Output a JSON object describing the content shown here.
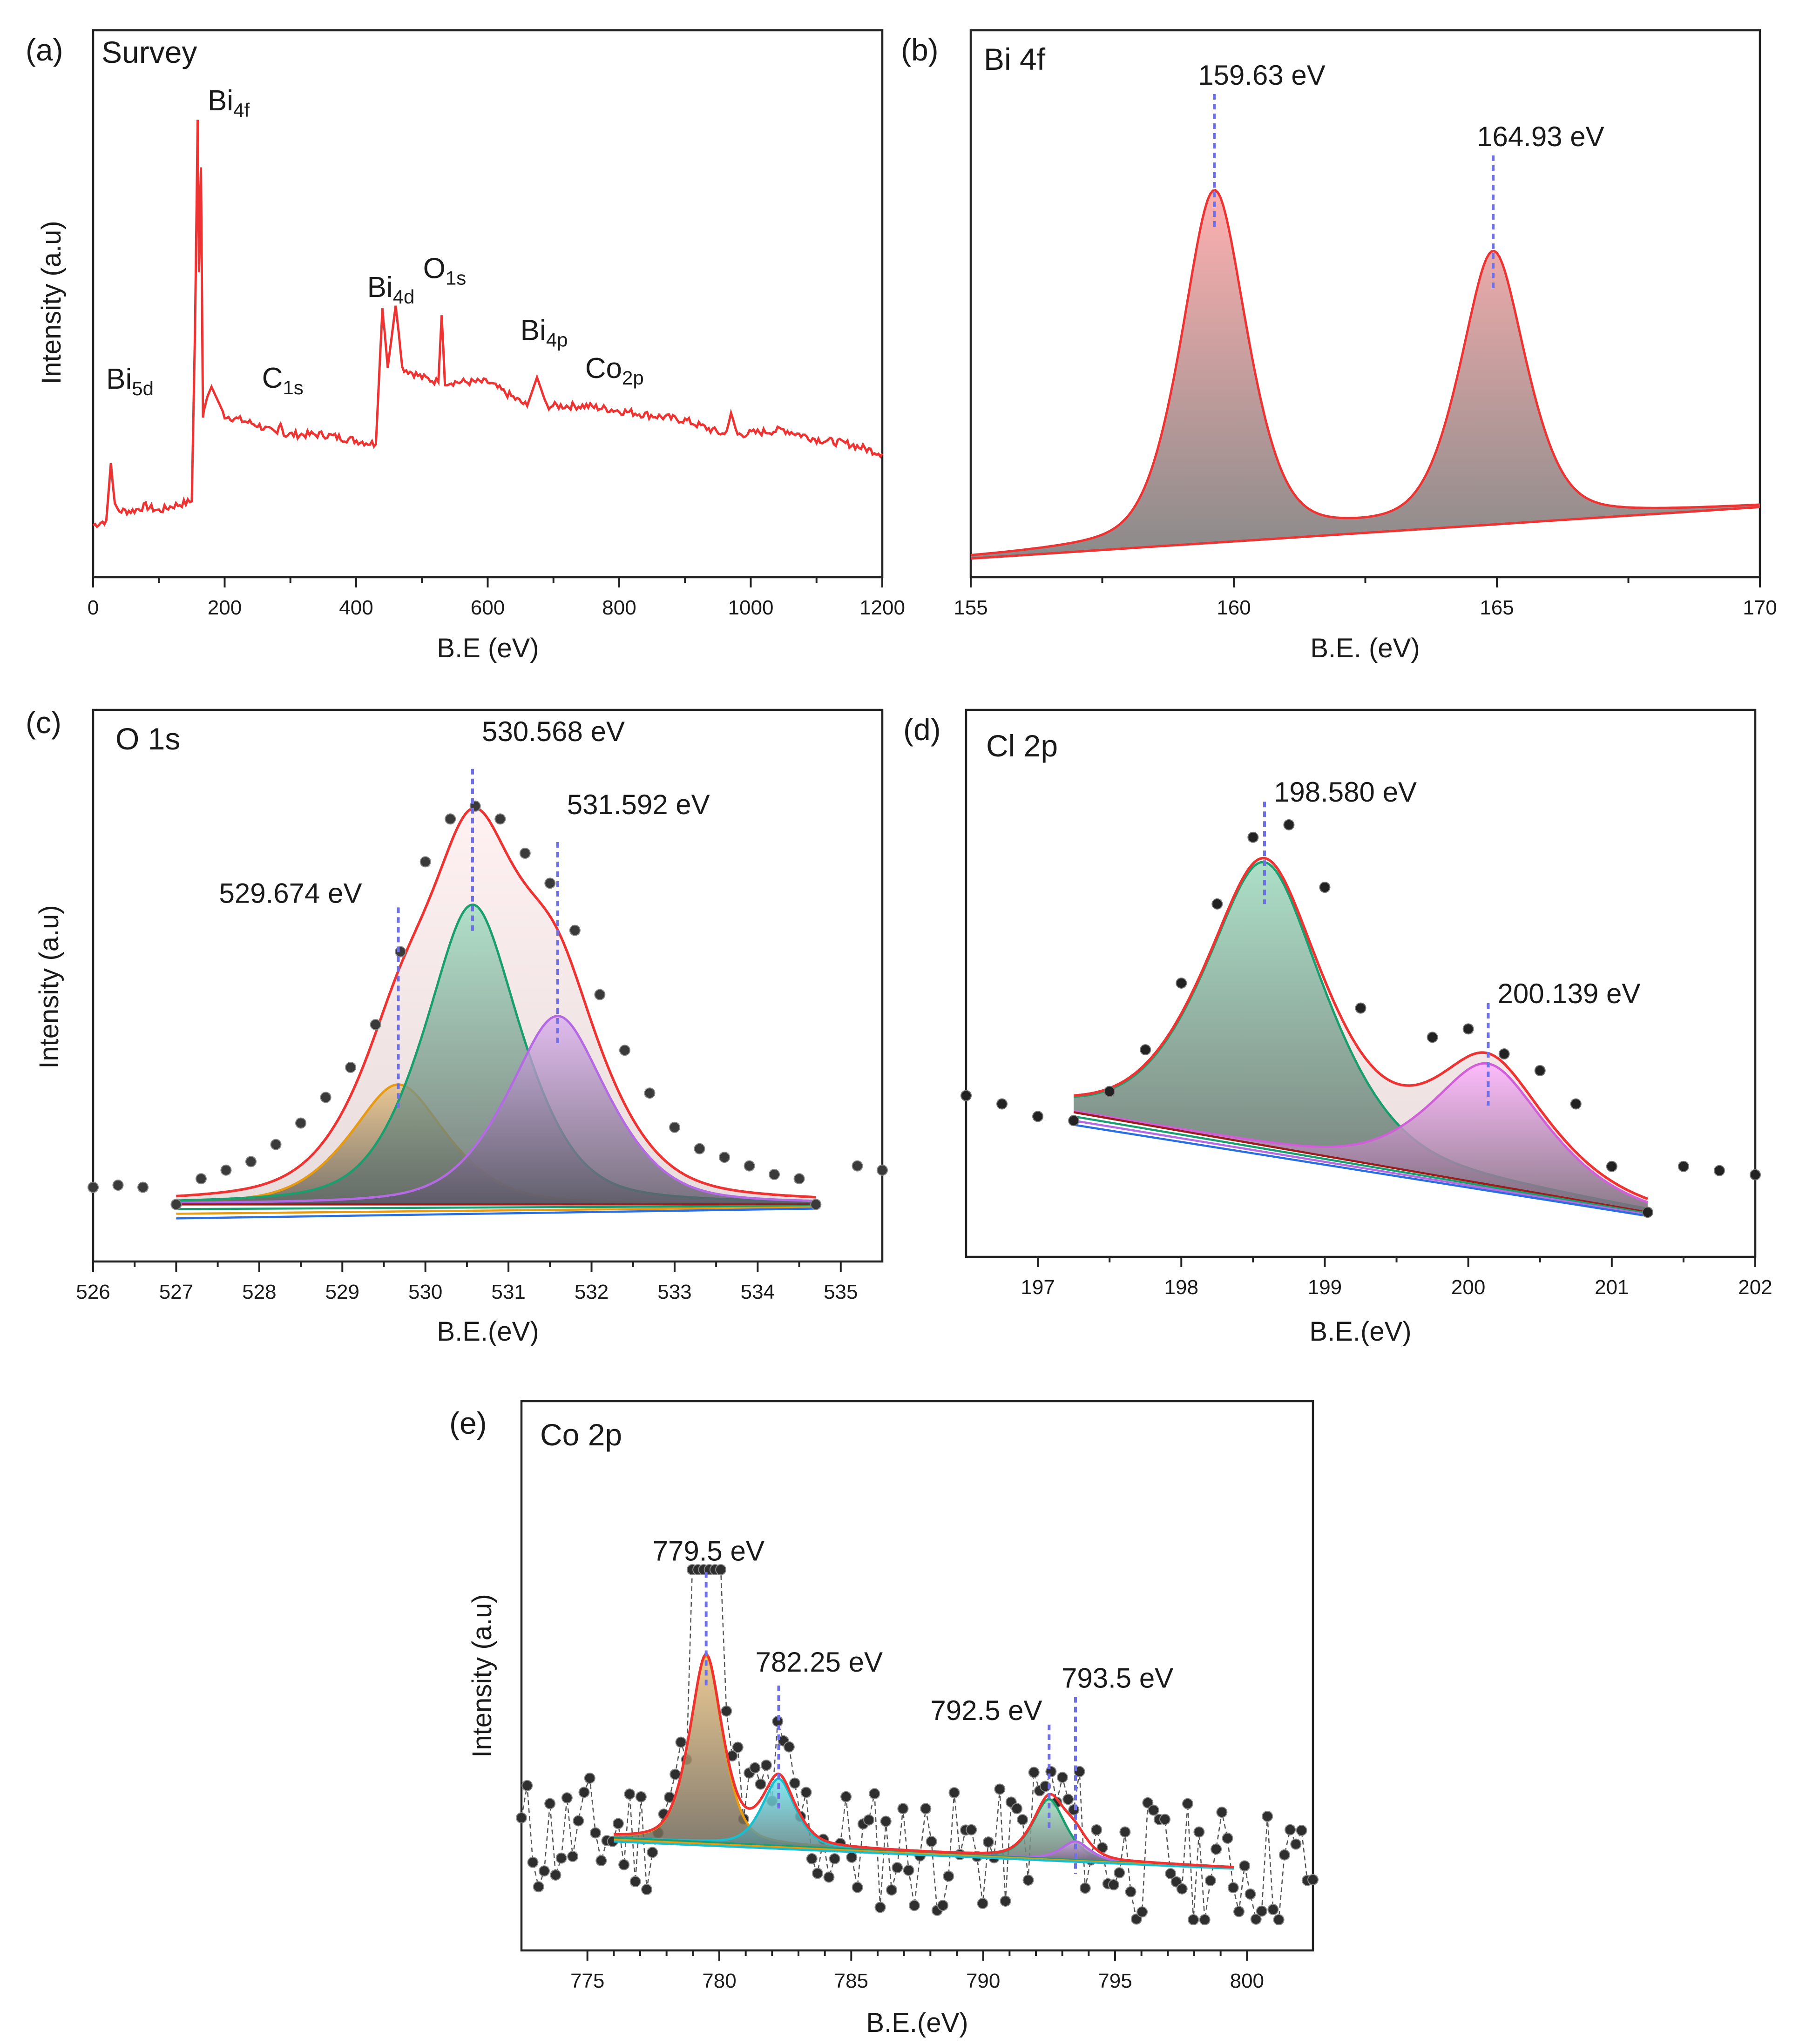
{
  "figure": {
    "description_free": true
  },
  "colors": {
    "red": "#ee3333",
    "green": "#1a9e6e",
    "orange": "#e89a10",
    "purple": "#b46ae2",
    "magenta": "#d060d8",
    "cyan": "#17bfcf",
    "blue": "#2a6ee0",
    "darkred": "#9c1c1c",
    "marker": "#6f6fe6",
    "dot": "#333333"
  },
  "chart_data": [
    {
      "id": "a",
      "type": "line",
      "tag": "(a)",
      "title": "Survey",
      "xlabel": "B.E (eV)",
      "ylabel": "Intensity (a.u)",
      "xlim": [
        0,
        1200
      ],
      "ylim": [
        0,
        100
      ],
      "xticks": [
        0,
        200,
        400,
        600,
        800,
        1000,
        1200
      ],
      "series": [
        {
          "name": "Survey spectrum",
          "x": [
            0,
            20,
            27,
            33,
            40,
            60,
            80,
            100,
            120,
            150,
            155,
            159,
            161,
            164,
            167,
            170,
            180,
            200,
            250,
            280,
            285,
            290,
            350,
            430,
            440,
            443,
            448,
            460,
            465,
            470,
            500,
            525,
            530,
            535,
            560,
            600,
            660,
            675,
            690,
            750,
            800,
            900,
            960,
            970,
            980,
            1050,
            1100,
            1150,
            1200
          ],
          "y": [
            7,
            8,
            20,
            11,
            10,
            10,
            11,
            10,
            11,
            12,
            48,
            92,
            60,
            82,
            30,
            32,
            36,
            30,
            28,
            26,
            29,
            26,
            26,
            24,
            53,
            48,
            40,
            53,
            47,
            40,
            38,
            37,
            51,
            37,
            37,
            37,
            32,
            38,
            32,
            32,
            31,
            29,
            26,
            30,
            26,
            27,
            25,
            24,
            22
          ]
        }
      ],
      "annotations": [
        {
          "main": "Bi",
          "sub": "5d",
          "x": 27
        },
        {
          "main": "Bi",
          "sub": "4f",
          "x": 160
        },
        {
          "main": "C",
          "sub": "1s",
          "x": 285
        },
        {
          "main": "Bi",
          "sub": "4d",
          "x": 445
        },
        {
          "main": "O",
          "sub": "1s",
          "x": 530
        },
        {
          "main": "Bi",
          "sub": "4p",
          "x": 678
        },
        {
          "main": "Co",
          "sub": "2p",
          "x": 780
        }
      ]
    },
    {
      "id": "b",
      "type": "area",
      "tag": "(b)",
      "title": "Bi 4f",
      "xlabel": "B.E. (eV)",
      "ylabel": "",
      "xlim": [
        155,
        170
      ],
      "ylim": [
        0,
        100
      ],
      "xticks": [
        155,
        160,
        165,
        170
      ],
      "baseline": [
        [
          155,
          2
        ],
        [
          170,
          13
        ]
      ],
      "peaks": [
        {
          "center": 159.63,
          "height": 75,
          "width": 0.8,
          "label": "159.63 eV"
        },
        {
          "center": 164.93,
          "height": 58,
          "width": 0.8,
          "label": "164.93 eV"
        }
      ]
    },
    {
      "id": "c",
      "type": "area",
      "tag": "(c)",
      "title": "O 1s",
      "xlabel": "B.E.(eV)",
      "ylabel": "Intensity (a.u)",
      "xlim": [
        526,
        535.5
      ],
      "ylim": [
        0,
        100
      ],
      "xticks": [
        526,
        527,
        528,
        529,
        530,
        531,
        532,
        533,
        534,
        535
      ],
      "fit_range": [
        527,
        534.7
      ],
      "baseline": [
        [
          527,
          3
        ],
        [
          534.7,
          3
        ]
      ],
      "components": [
        {
          "center": 529.674,
          "height": 28,
          "width": 0.65,
          "color": "orange",
          "label": "529.674 eV"
        },
        {
          "center": 530.568,
          "height": 70,
          "width": 0.65,
          "color": "green",
          "label": "530.568 eV"
        },
        {
          "center": 531.592,
          "height": 44,
          "width": 0.68,
          "color": "purple",
          "label": "531.592 eV"
        }
      ],
      "points_x": [
        526,
        526.3,
        526.6,
        527,
        527.3,
        527.6,
        527.9,
        528.2,
        528.5,
        528.8,
        529.1,
        529.4,
        529.7,
        530.0,
        530.3,
        530.6,
        530.9,
        531.2,
        531.5,
        531.8,
        532.1,
        532.4,
        532.7,
        533.0,
        533.3,
        533.6,
        533.9,
        534.2,
        534.5,
        534.7,
        535.2,
        535.5
      ],
      "points_y": [
        7,
        7.5,
        7,
        3,
        9,
        11,
        13,
        17,
        22,
        28,
        35,
        45,
        62,
        83,
        93,
        96,
        93,
        85,
        78,
        67,
        52,
        39,
        29,
        21,
        16,
        14,
        12,
        10,
        9,
        3,
        12,
        11
      ]
    },
    {
      "id": "d",
      "type": "area",
      "tag": "(d)",
      "title": "Cl 2p",
      "xlabel": "B.E.(eV)",
      "ylabel": "",
      "xlim": [
        196.5,
        202
      ],
      "ylim": [
        0,
        100
      ],
      "xticks": [
        197,
        198,
        199,
        200,
        201,
        202
      ],
      "fit_range": [
        197.25,
        201.25
      ],
      "baseline": [
        [
          197.25,
          28
        ],
        [
          201.25,
          4
        ]
      ],
      "components": [
        {
          "center": 198.58,
          "height": 68,
          "width": 0.47,
          "color": "green",
          "label": "198.580 eV"
        },
        {
          "center": 200.139,
          "height": 29,
          "width": 0.45,
          "color": "magenta",
          "label": "200.139 eV"
        }
      ],
      "points_x": [
        196.5,
        196.75,
        197.0,
        197.25,
        197.5,
        197.75,
        198.0,
        198.25,
        198.5,
        198.75,
        199.0,
        199.25,
        199.75,
        200.0,
        200.25,
        200.5,
        200.75,
        201.0,
        201.25,
        201.5,
        201.75,
        202.0
      ],
      "points_y": [
        32,
        30,
        27,
        26,
        33,
        43,
        59,
        78,
        94,
        97,
        82,
        53,
        46,
        48,
        42,
        38,
        30,
        15,
        4,
        15,
        14,
        13
      ]
    },
    {
      "id": "e",
      "type": "area",
      "tag": "(e)",
      "title": "Co 2p",
      "xlabel": "B.E.(eV)",
      "ylabel": "Intensity (a.u)",
      "xlim": [
        772.5,
        802.5
      ],
      "ylim": [
        0,
        100
      ],
      "xticks": [
        775,
        780,
        785,
        790,
        795,
        800
      ],
      "fit_range": [
        776,
        799.5
      ],
      "baseline": [
        [
          776,
          14
        ],
        [
          799.5,
          6
        ]
      ],
      "components": [
        {
          "center": 779.5,
          "height": 50,
          "width": 0.7,
          "color": "orange",
          "label": "779.5 eV"
        },
        {
          "center": 782.25,
          "height": 18,
          "width": 0.7,
          "color": "cyan",
          "label": "782.25 eV"
        },
        {
          "center": 792.5,
          "height": 16,
          "width": 0.7,
          "color": "green",
          "label": "792.5 eV"
        },
        {
          "center": 793.5,
          "height": 5,
          "width": 0.6,
          "color": "purple",
          "label": "793.5 eV"
        }
      ],
      "noise_points": 140
    }
  ]
}
